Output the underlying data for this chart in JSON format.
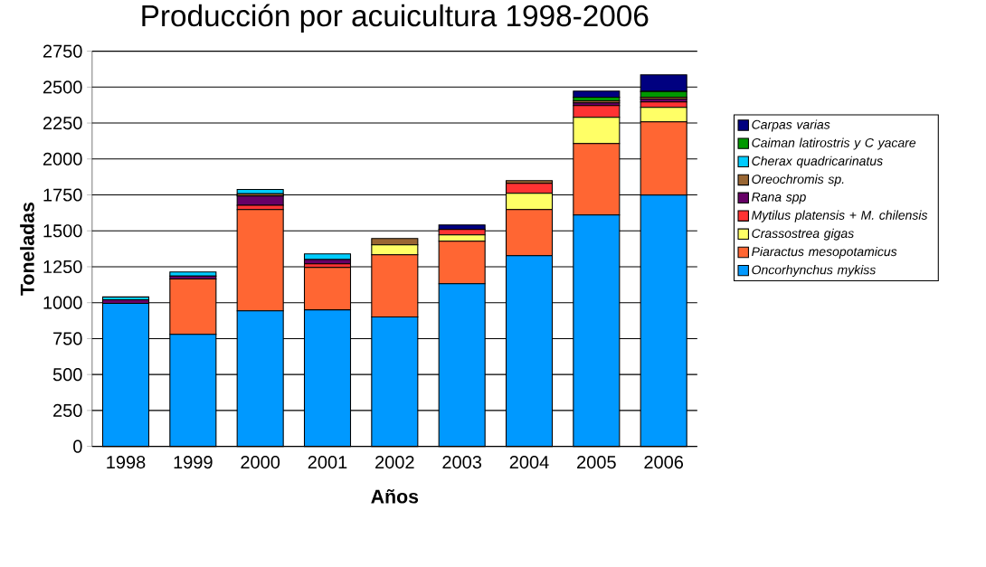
{
  "chart_data": {
    "type": "bar",
    "stacked": true,
    "title": "Producción por acuicultura 1998-2006",
    "xlabel": "Años",
    "ylabel": "Toneladas",
    "categories": [
      "1998",
      "1999",
      "2000",
      "2001",
      "2002",
      "2003",
      "2004",
      "2005",
      "2006"
    ],
    "ylim": [
      0,
      2750
    ],
    "yticks": [
      0,
      250,
      500,
      750,
      1000,
      1250,
      1500,
      1750,
      2000,
      2250,
      2500,
      2750
    ],
    "grid": "y",
    "legend": "right",
    "series": [
      {
        "name": "Oncorhynchus mykiss",
        "color": "#0099ff",
        "values": [
          995,
          780,
          943,
          950,
          900,
          1132,
          1327,
          1610,
          1749
        ]
      },
      {
        "name": "Piaractus mesopotamicus",
        "color": "#ff6633",
        "values": [
          null,
          385,
          705,
          295,
          433,
          296,
          321,
          497,
          509
        ]
      },
      {
        "name": "Crassostrea gigas",
        "color": "#ffff66",
        "values": [
          null,
          null,
          null,
          null,
          70,
          44,
          113,
          183,
          101
        ]
      },
      {
        "name": "Mytilus platensis + M. chilensis",
        "color": "#ff3333",
        "values": [
          null,
          null,
          30,
          25,
          null,
          38,
          69,
          81,
          38
        ]
      },
      {
        "name": "Rana spp",
        "color": "#660066",
        "values": [
          25,
          20,
          65,
          30,
          null,
          null,
          null,
          19,
          20
        ]
      },
      {
        "name": "Oreochromis sp.",
        "color": "#996633",
        "values": [
          null,
          null,
          15,
          null,
          44,
          null,
          19,
          15,
          13
        ]
      },
      {
        "name": "Cherax quadricarinatus",
        "color": "#00ccff",
        "values": [
          20,
          29,
          30,
          40,
          null,
          null,
          null,
          null,
          null
        ]
      },
      {
        "name": "Caiman latirostris y C yacare",
        "color": "#009900",
        "values": [
          null,
          null,
          null,
          null,
          null,
          null,
          null,
          25,
          40
        ]
      },
      {
        "name": "Carpas varias",
        "color": "#000080",
        "values": [
          null,
          null,
          null,
          null,
          null,
          31,
          null,
          42,
          115
        ]
      }
    ]
  }
}
